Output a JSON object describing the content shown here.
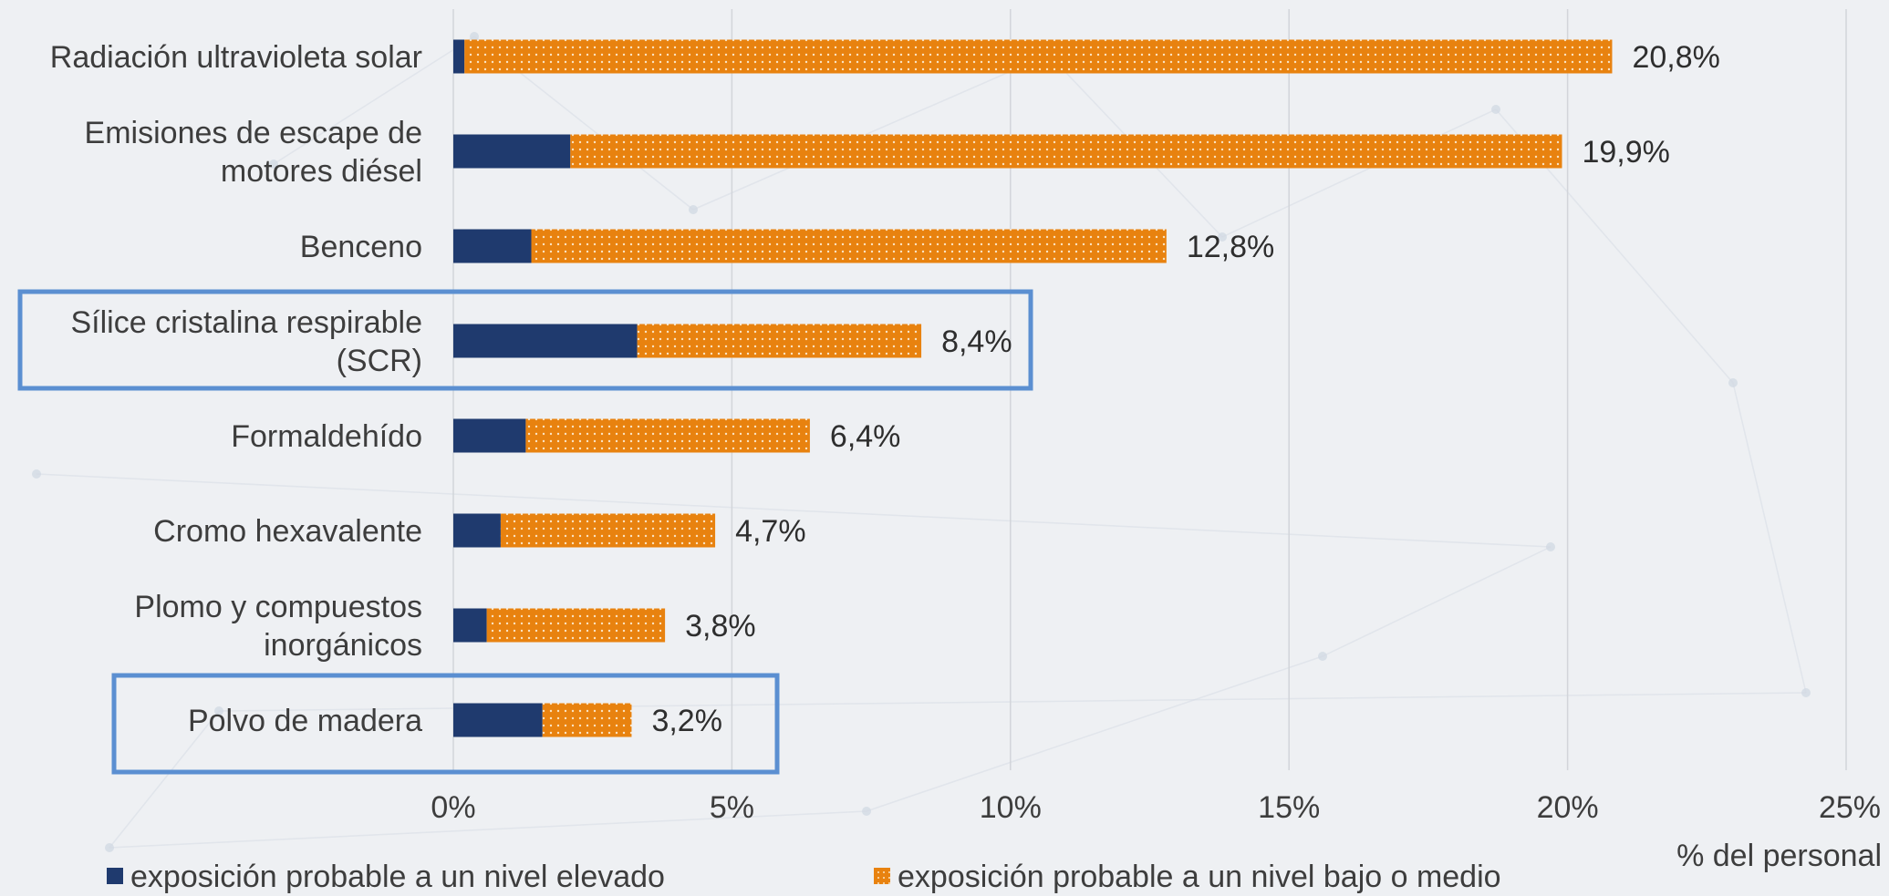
{
  "chart_data": {
    "type": "bar",
    "orientation": "horizontal",
    "stacked": true,
    "categories": [
      [
        "Radiación ultravioleta solar"
      ],
      [
        "Emisiones de escape de",
        "motores diésel"
      ],
      [
        "Benceno"
      ],
      [
        "Sílice cristalina respirable",
        "(SCR)"
      ],
      [
        "Formaldehído"
      ],
      [
        "Cromo hexavalente"
      ],
      [
        "Plomo y compuestos",
        "inorgánicos"
      ],
      [
        "Polvo de madera"
      ]
    ],
    "series": [
      {
        "name": "exposición probable a un nivel elevado",
        "color": "#1f3a6e",
        "values": [
          0.2,
          2.1,
          1.4,
          3.3,
          1.3,
          0.85,
          0.6,
          1.6
        ]
      },
      {
        "name": "exposición probable a un nivel bajo o medio",
        "color": "#e8820f",
        "pattern": "dotted",
        "values": [
          20.6,
          17.8,
          11.4,
          5.1,
          5.1,
          3.85,
          3.2,
          1.6
        ]
      }
    ],
    "totals_labels": [
      "20,8%",
      "19,9%",
      "12,8%",
      "8,4%",
      "6,4%",
      "4,7%",
      "3,8%",
      "3,2%"
    ],
    "xlim": [
      0,
      25
    ],
    "xticks": [
      {
        "value": 0,
        "label": "0%"
      },
      {
        "value": 5,
        "label": "5%"
      },
      {
        "value": 10,
        "label": "10%"
      },
      {
        "value": 15,
        "label": "15%"
      },
      {
        "value": 20,
        "label": "20%"
      },
      {
        "value": 25,
        "label": "25%"
      }
    ],
    "xlabel": "% del personal",
    "grid": "vertical",
    "legend_position": "bottom",
    "highlighted_categories": [
      3,
      7
    ],
    "highlight_color": "#5b8fd1"
  }
}
